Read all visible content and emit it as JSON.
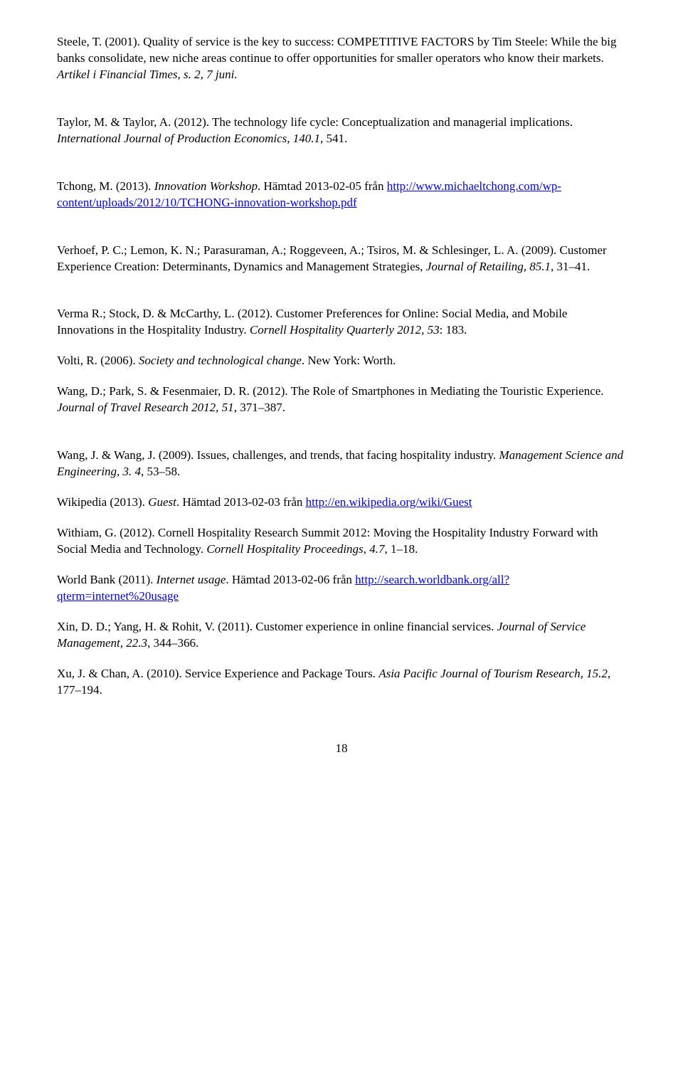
{
  "refs": [
    {
      "pre": "Steele, T. (2001). Quality of service is the key to success: COMPETITIVE FACTORS by Tim Steele: While the big banks consolidate, new niche areas continue to offer opportunities for smaller operators who know their markets. ",
      "italic1": "Artikel i Financial Times, s. 2, 7 juni.",
      "spacing": "big"
    },
    {
      "pre": "Taylor, M. & Taylor, A. (2012). The technology life cycle: Conceptualization and managerial implications. ",
      "italic1": "International Journal of Production Economics, 140.1",
      "post1": ", 541.",
      "spacing": "big"
    },
    {
      "pre": "Tchong, M. (2013). ",
      "italic1": "Innovation Workshop",
      "post1": ". Hämtad 2013-02-05 från ",
      "link_text": "http://www.michaeltchong.com/wp-content/uploads/2012/10/TCHONG-innovation-workshop.pdf",
      "link_href": "http://www.michaeltchong.com/wp-content/uploads/2012/10/TCHONG-innovation-workshop.pdf",
      "spacing": "big"
    },
    {
      "pre": "Verhoef, P. C.; Lemon, K. N.; Parasuraman, A.; Roggeveen, A.; Tsiros, M. & Schlesinger, L. A. (2009). Customer Experience Creation: Determinants, Dynamics and Management Strategies, ",
      "italic1": "Journal of Retailing, 85.1",
      "post1": ", 31–41.",
      "spacing": "big"
    },
    {
      "pre": "Verma R.; Stock, D. & McCarthy, L. (2012). Customer Preferences for Online: Social Media, and Mobile Innovations in the Hospitality Industry. ",
      "italic1": "Cornell Hospitality Quarterly 2012, 53",
      "post1": ": 183.",
      "spacing": "small"
    },
    {
      "pre": "Volti, R. (2006). ",
      "italic1": "Society and technological change",
      "post1": ". New York: Worth.",
      "spacing": "small"
    },
    {
      "pre": "Wang, D.; Park, S. & Fesenmaier, D. R. (2012). The Role of Smartphones in Mediating the Touristic Experience. ",
      "italic1": "Journal of Travel Research 2012, 51",
      "post1": ", 371–387.",
      "spacing": "big"
    },
    {
      "pre": "Wang, J. & Wang, J. (2009). Issues, challenges, and trends, that facing hospitality industry. ",
      "italic1": "Management Science and Engineering, 3. 4",
      "post1": ", 53–58.",
      "spacing": "small"
    },
    {
      "pre": "Wikipedia (2013). ",
      "italic1": "Guest",
      "post1": ". Hämtad 2013-02-03 från ",
      "link_text": "http://en.wikipedia.org/wiki/Guest",
      "link_href": "http://en.wikipedia.org/wiki/Guest",
      "spacing": "small"
    },
    {
      "pre": "Withiam, G. (2012). Cornell Hospitality Research Summit 2012: Moving the Hospitality Industry Forward with Social Media and Technology. ",
      "italic1": "Cornell Hospitality Proceedings",
      "post1": ", ",
      "italic2": "4.7",
      "post2": ", 1–18.",
      "spacing": "small"
    },
    {
      "pre": "World Bank (2011). ",
      "italic1": "Internet usage",
      "post1": ". Hämtad 2013-02-06 från ",
      "link_text": "http://search.worldbank.org/all?qterm=internet%20usage",
      "link_href": "http://search.worldbank.org/all?qterm=internet%20usage",
      "spacing": "small"
    },
    {
      "pre": "Xin, D. D.; Yang, H. & Rohit, V. (2011). Customer experience in online financial services. ",
      "italic1": "Journal of Service Management, 22.3",
      "post1": ", 344–366.",
      "spacing": "small"
    },
    {
      "pre": "Xu, J. & Chan, A. (2010). Service Experience and Package Tours. ",
      "italic1": "Asia Pacific Journal of Tourism Research, 15.2",
      "post1": ", 177–194.",
      "spacing": "small"
    }
  ],
  "page_number": "18"
}
